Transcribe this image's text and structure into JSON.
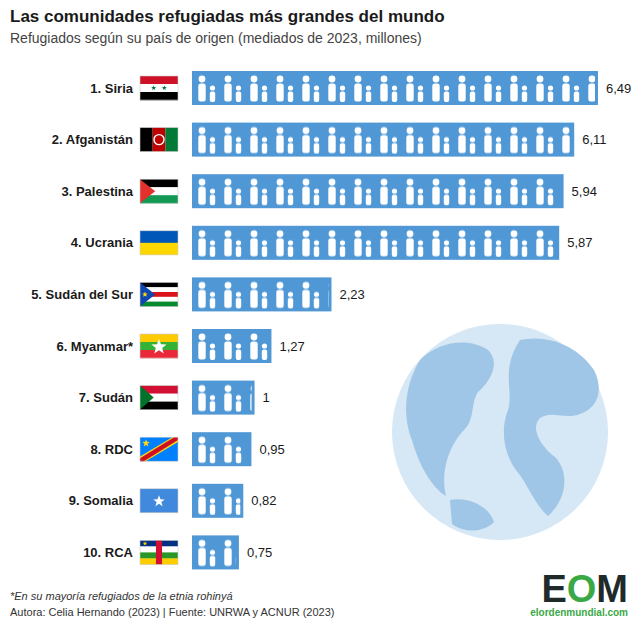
{
  "chart_data": {
    "type": "bar",
    "orientation": "horizontal",
    "title": "Las comunidades refugiadas más grandes del mundo",
    "subtitle": "Refugiados según su país de origen (mediados de 2023, millones)",
    "categories": [
      "1. Siria",
      "2. Afganistán",
      "3. Palestina",
      "4. Ucrania",
      "5. Sudán del Sur",
      "6. Myanmar*",
      "7. Sudán",
      "8. RDC",
      "9. Somalia",
      "10. RCA"
    ],
    "values": [
      6.49,
      6.11,
      5.94,
      5.87,
      2.23,
      1.27,
      1,
      0.95,
      0.82,
      0.75
    ],
    "value_labels": [
      "6,49",
      "6,11",
      "5,94",
      "5,87",
      "2,23",
      "1,27",
      "1",
      "0,95",
      "0,82",
      "0,75"
    ],
    "color": "#4f97d5",
    "xlim": [
      0,
      6.5
    ],
    "data_labels": true,
    "tick_labels": false,
    "grid": false,
    "annotations": [
      "*En su mayoría refugiados de la etnia rohinyá",
      "Autora: Celia Hernando (2023) | Fuente: UNRWA y ACNUR (2023)"
    ]
  },
  "logo": {
    "text": "EOM",
    "site": "elordenmundial.com"
  }
}
